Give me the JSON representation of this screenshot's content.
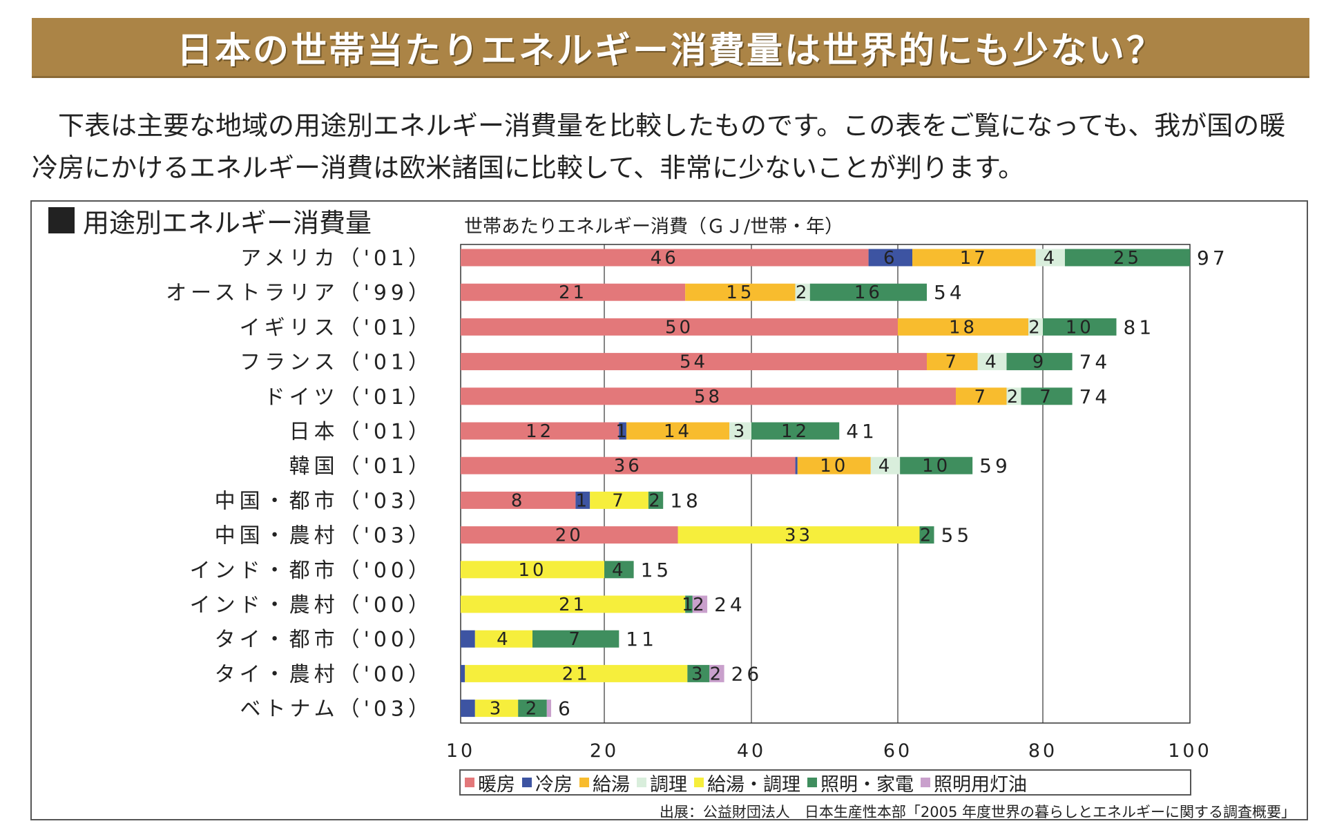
{
  "banner": {
    "title": "日本の世帯当たりエネルギー消費量は世界的にも少ない？"
  },
  "intro": {
    "line1": "下表は主要な地域の用途別エネルギー消費量を比較したものです。この表をご覧になっても、我が国の暖",
    "line2": "冷房にかけるエネルギー消費は欧米諸国に比較して、非常に少ないことが判ります。"
  },
  "section": {
    "heading": "用途別エネルギー消費量"
  },
  "source": {
    "text": "出展：公益財団法人　日本生産性本部「2005 年度世界の暮らしとエネルギーに関する調査概要」"
  },
  "chart_data": {
    "type": "bar",
    "orientation": "horizontal",
    "stacked": true,
    "title": "",
    "xlabel": "世帯あたりエネルギー消費（ＧＪ/世帯・年）",
    "ylabel": "",
    "xlim": [
      10,
      100
    ],
    "xticks": [
      10,
      20,
      40,
      60,
      80,
      100
    ],
    "grid": true,
    "legend_position": "bottom",
    "categories": [
      "アメリカ（'01）",
      "オーストラリア（'99）",
      "イギリス（'01）",
      "フランス（'01）",
      "ドイツ（'01）",
      "日本（'01）",
      "韓国（'01）",
      "中国・都市（'03）",
      "中国・農村（'03）",
      "インド・都市（'00）",
      "インド・農村（'00）",
      "タイ・都市（'00）",
      "タイ・農村（'00）",
      "ベトナム（'03）"
    ],
    "series": [
      {
        "name": "暖房",
        "color": "#e3787a",
        "values": [
          46,
          21,
          50,
          54,
          58,
          12,
          36,
          8,
          20,
          0,
          0,
          0,
          0,
          0
        ],
        "labels": [
          "46",
          "21",
          "50",
          "54",
          "58",
          "12",
          "36",
          "8",
          "20",
          "",
          "",
          "",
          "",
          ""
        ]
      },
      {
        "name": "冷房",
        "color": "#3d54a2",
        "values": [
          6,
          0,
          0,
          0,
          0,
          1,
          0.3,
          1,
          0,
          0,
          0,
          1,
          0.3,
          1
        ],
        "labels": [
          "6",
          "",
          "",
          "",
          "",
          "1",
          "",
          "1",
          "",
          "",
          "",
          "",
          "",
          ""
        ]
      },
      {
        "name": "給湯",
        "color": "#f8bc2e",
        "values": [
          17,
          15,
          18,
          7,
          7,
          14,
          10,
          0,
          0,
          0,
          0,
          0,
          0,
          0
        ],
        "labels": [
          "17",
          "15",
          "18",
          "7",
          "7",
          "14",
          "10",
          "",
          "",
          "",
          "",
          "",
          "",
          ""
        ]
      },
      {
        "name": "調理",
        "color": "#d9eedc",
        "values": [
          4,
          2,
          2,
          4,
          2,
          3,
          4,
          0,
          0,
          0,
          0,
          0,
          0,
          0
        ],
        "labels": [
          "4",
          "2",
          "2",
          "4",
          "2",
          "3",
          "4",
          "",
          "",
          "",
          "",
          "",
          "",
          ""
        ]
      },
      {
        "name": "給湯・調理",
        "color": "#f6ee3c",
        "values": [
          0,
          0,
          0,
          0,
          0,
          0,
          0,
          7,
          33,
          10,
          21,
          4,
          21,
          3
        ],
        "labels": [
          "",
          "",
          "",
          "",
          "",
          "",
          "",
          "7",
          "33",
          "10",
          "21",
          "4",
          "21",
          "3"
        ]
      },
      {
        "name": "照明・家電",
        "color": "#3f8e5e",
        "values": [
          25,
          16,
          10,
          9,
          7,
          12,
          10,
          2,
          2,
          4,
          1,
          7,
          3,
          2
        ],
        "labels": [
          "25",
          "16",
          "10",
          "9",
          "7",
          "12",
          "10",
          "2",
          "2",
          "4",
          "1",
          "7",
          "3",
          "2"
        ]
      },
      {
        "name": "照明用灯油",
        "color": "#c9a0cc",
        "values": [
          0,
          0,
          0,
          0,
          0,
          0,
          0,
          0,
          0,
          0,
          2,
          0,
          2,
          0.3
        ],
        "labels": [
          "",
          "",
          "",
          "",
          "",
          "",
          "",
          "",
          "",
          "",
          "2",
          "",
          "2",
          ""
        ]
      }
    ],
    "totals": [
      97,
      54,
      81,
      74,
      74,
      41,
      59,
      18,
      55,
      15,
      24,
      11,
      26,
      6
    ]
  }
}
